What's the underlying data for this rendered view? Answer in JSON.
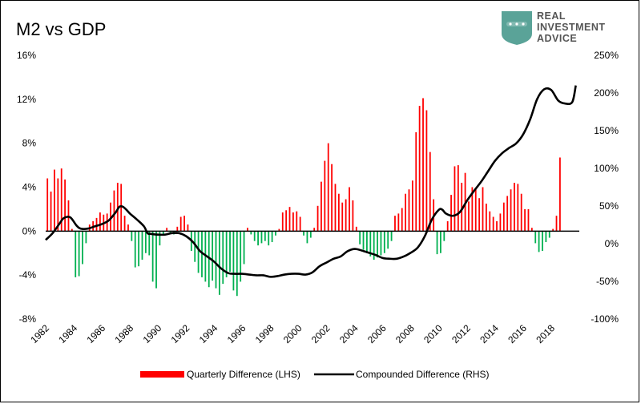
{
  "chart_data": {
    "type": "bar+line",
    "title": "M2 vs GDP",
    "left_axis": {
      "ticks": [
        16,
        12,
        8,
        4,
        0,
        -4,
        -8
      ],
      "tick_labels": [
        "16%",
        "12%",
        "8%",
        "4%",
        "0%",
        "-4%",
        "-8%"
      ],
      "min": -8,
      "max": 16
    },
    "right_axis": {
      "ticks": [
        250,
        200,
        150,
        100,
        50,
        0,
        -50,
        -100
      ],
      "tick_labels": [
        "250%",
        "200%",
        "150%",
        "100%",
        "50%",
        "0%",
        "-50%",
        "-100%"
      ],
      "min": -100,
      "max": 250
    },
    "x_axis": {
      "min": 1982,
      "max": 2020,
      "tick_labels": [
        "1982",
        "1984",
        "1986",
        "1988",
        "1990",
        "1992",
        "1994",
        "1996",
        "1998",
        "2000",
        "2002",
        "2004",
        "2006",
        "2008",
        "2010",
        "2012",
        "2014",
        "2016",
        "2018"
      ]
    },
    "grid": false,
    "legend_position": "bottom",
    "positive_color": "#ff0000",
    "negative_color": "#00b050",
    "line_color": "#000000",
    "series": [
      {
        "name": "Quarterly Difference (LHS)",
        "type": "bar",
        "x_start": 1982.0,
        "x_step": 0.25,
        "values": [
          4.8,
          3.6,
          5.6,
          4.8,
          5.7,
          4.7,
          2.8,
          0.2,
          -4.2,
          -4.1,
          -3.0,
          -1.1,
          0.6,
          0.9,
          1.2,
          1.7,
          1.5,
          1.6,
          2.6,
          3.7,
          4.4,
          4.3,
          1.4,
          0.6,
          -0.9,
          -3.3,
          -3.2,
          -2.6,
          -2.0,
          -2.2,
          -4.6,
          -5.2,
          -1.3,
          -0.4,
          0.3,
          -0.2,
          -0.3,
          0.4,
          1.3,
          1.4,
          0.6,
          -1.8,
          -2.8,
          -3.8,
          -4.2,
          -4.6,
          -5.1,
          -4.5,
          -5.2,
          -5.8,
          -4.8,
          -4.2,
          -3.7,
          -5.4,
          -5.9,
          -4.6,
          -3.0,
          0.3,
          -0.3,
          -0.9,
          -1.3,
          -1.1,
          -0.9,
          -1.3,
          -1.0,
          -0.4,
          0.2,
          1.7,
          1.9,
          2.2,
          1.7,
          1.8,
          1.3,
          -0.4,
          -1.1,
          -0.6,
          0.3,
          2.3,
          4.5,
          6.4,
          8.0,
          6.1,
          4.3,
          3.4,
          2.6,
          2.9,
          4.0,
          2.8,
          0.4,
          -1.2,
          -1.7,
          -2.0,
          -2.3,
          -2.6,
          -2.4,
          -2.2,
          -2.0,
          -1.6,
          -0.9,
          1.4,
          1.6,
          2.1,
          3.4,
          3.8,
          4.6,
          9.0,
          11.4,
          12.1,
          11.0,
          7.2,
          2.9,
          -2.1,
          -2.0,
          -0.9,
          0.9,
          3.3,
          5.9,
          6.0,
          4.4,
          5.3,
          2.7,
          4.0,
          3.8,
          3.0,
          4.0,
          2.5,
          1.8,
          1.3,
          0.9,
          1.6,
          2.6,
          3.2,
          3.8,
          4.4,
          4.3,
          3.4,
          2.0,
          2.0,
          0.3,
          -1.1,
          -1.9,
          -1.8,
          -1.0,
          -0.6,
          0.2,
          1.4,
          6.7
        ]
      },
      {
        "name": "Compounded Difference (RHS)",
        "type": "line",
        "points": [
          [
            1982.0,
            5
          ],
          [
            1982.5,
            14
          ],
          [
            1983.0,
            27
          ],
          [
            1983.3,
            34
          ],
          [
            1983.75,
            35
          ],
          [
            1984.2,
            24
          ],
          [
            1984.5,
            20
          ],
          [
            1985.0,
            20
          ],
          [
            1985.5,
            23
          ],
          [
            1986.0,
            26
          ],
          [
            1986.5,
            31
          ],
          [
            1987.0,
            42
          ],
          [
            1987.25,
            49
          ],
          [
            1987.5,
            49
          ],
          [
            1987.75,
            45
          ],
          [
            1988.0,
            40
          ],
          [
            1988.5,
            32
          ],
          [
            1989.0,
            23
          ],
          [
            1989.25,
            14
          ],
          [
            1989.5,
            13
          ],
          [
            1990.0,
            12
          ],
          [
            1990.5,
            12
          ],
          [
            1991.0,
            14
          ],
          [
            1991.5,
            14
          ],
          [
            1992.0,
            10
          ],
          [
            1992.5,
            2
          ],
          [
            1993.0,
            -10
          ],
          [
            1993.5,
            -17
          ],
          [
            1994.0,
            -24
          ],
          [
            1994.5,
            -33
          ],
          [
            1995.0,
            -39
          ],
          [
            1995.5,
            -40
          ],
          [
            1996.0,
            -40
          ],
          [
            1996.5,
            -41
          ],
          [
            1997.0,
            -42
          ],
          [
            1997.5,
            -42
          ],
          [
            1998.0,
            -44
          ],
          [
            1998.5,
            -43
          ],
          [
            1999.0,
            -41
          ],
          [
            1999.5,
            -40
          ],
          [
            2000.0,
            -40
          ],
          [
            2000.5,
            -41
          ],
          [
            2001.0,
            -38
          ],
          [
            2001.5,
            -30
          ],
          [
            2002.0,
            -25
          ],
          [
            2002.5,
            -20
          ],
          [
            2003.0,
            -17
          ],
          [
            2003.5,
            -10
          ],
          [
            2004.0,
            -7
          ],
          [
            2004.5,
            -9
          ],
          [
            2005.0,
            -12
          ],
          [
            2005.5,
            -15
          ],
          [
            2006.0,
            -19
          ],
          [
            2006.5,
            -20
          ],
          [
            2007.0,
            -20
          ],
          [
            2007.5,
            -17
          ],
          [
            2008.0,
            -12
          ],
          [
            2008.5,
            -5
          ],
          [
            2009.0,
            10
          ],
          [
            2009.5,
            32
          ],
          [
            2010.0,
            45
          ],
          [
            2010.25,
            45
          ],
          [
            2010.5,
            40
          ],
          [
            2011.0,
            37
          ],
          [
            2011.5,
            42
          ],
          [
            2012.0,
            57
          ],
          [
            2012.5,
            70
          ],
          [
            2013.0,
            82
          ],
          [
            2013.5,
            96
          ],
          [
            2014.0,
            110
          ],
          [
            2014.5,
            120
          ],
          [
            2015.0,
            127
          ],
          [
            2015.5,
            133
          ],
          [
            2016.0,
            145
          ],
          [
            2016.5,
            165
          ],
          [
            2017.0,
            192
          ],
          [
            2017.5,
            205
          ],
          [
            2018.0,
            204
          ],
          [
            2018.5,
            190
          ],
          [
            2019.0,
            186
          ],
          [
            2019.5,
            188
          ],
          [
            2019.75,
            210
          ]
        ]
      }
    ]
  },
  "legend": {
    "bar_label": "Quarterly Difference (LHS)",
    "line_label": "Compounded Difference (RHS)"
  },
  "logo": {
    "line1": "REAL",
    "line2": "INVESTMENT",
    "line3": "ADVICE",
    "color": "#5aa398"
  }
}
